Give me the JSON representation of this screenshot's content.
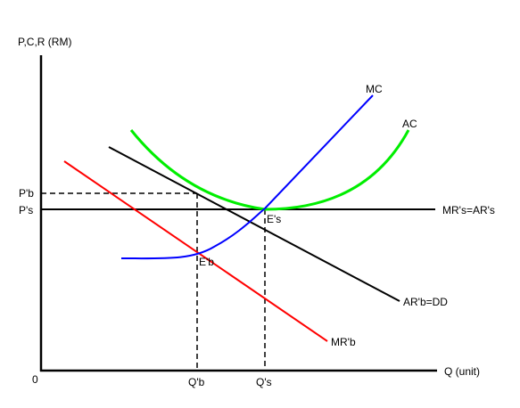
{
  "axes": {
    "y_label": "P,C,R (RM)",
    "x_label": "Q (unit)",
    "origin_label": "0",
    "y_ticks": [
      "P'b",
      "P's"
    ],
    "x_ticks": [
      "Q'b",
      "Q's"
    ]
  },
  "curves": {
    "mc": {
      "label": "MC",
      "color": "#0000ff"
    },
    "ac": {
      "label": "AC",
      "color": "#00ee00"
    },
    "ar_b": {
      "label": "AR'b=DD",
      "color": "#000000"
    },
    "mr_b": {
      "label": "MR'b",
      "color": "#ff0000"
    },
    "mr_s": {
      "label": "MR's=AR's",
      "color": "#000000"
    }
  },
  "points": {
    "e_s": "E's",
    "e_b": "E'b"
  }
}
